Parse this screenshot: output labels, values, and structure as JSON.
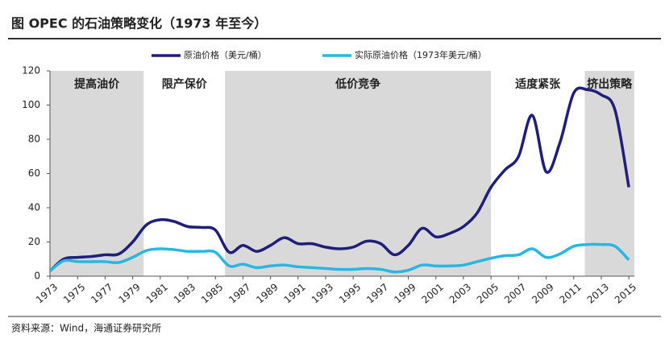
{
  "chart_data": {
    "type": "line",
    "title": "图 OPEC 的石油策略变化（1973 年至今）",
    "source": "资料来源：Wind，海通证券研究所",
    "x": [
      1973,
      1974,
      1975,
      1976,
      1977,
      1978,
      1979,
      1980,
      1981,
      1982,
      1983,
      1984,
      1985,
      1986,
      1987,
      1988,
      1989,
      1990,
      1991,
      1992,
      1993,
      1994,
      1995,
      1996,
      1997,
      1998,
      1999,
      2000,
      2001,
      2002,
      2003,
      2004,
      2005,
      2006,
      2007,
      2008,
      2009,
      2010,
      2011,
      2012,
      2013,
      2014,
      2015
    ],
    "series": [
      {
        "name": "原油价格（美元/桶）",
        "color": "#1f1f7a",
        "values": [
          3,
          10,
          11,
          11.5,
          12.5,
          13,
          20,
          30,
          33,
          32,
          29,
          28.5,
          27,
          14,
          18,
          14.5,
          18,
          22.5,
          19,
          19,
          17,
          16,
          17,
          20.5,
          19,
          12.5,
          18,
          28,
          23,
          25,
          29,
          37,
          52,
          62,
          70,
          94,
          61,
          78,
          107,
          109,
          106,
          97,
          52
        ]
      },
      {
        "name": "实际原油价格（1973年美元/桶）",
        "color": "#29b6e0",
        "values": [
          3,
          9,
          8.5,
          8.5,
          8.5,
          8,
          11,
          15,
          16,
          15.5,
          14.5,
          14.5,
          14,
          6,
          7,
          5,
          6,
          6.5,
          5.5,
          5,
          4.5,
          4,
          4,
          4.5,
          4,
          2.5,
          3.5,
          6.5,
          6,
          6,
          6.5,
          8.5,
          10.5,
          12,
          12.5,
          16,
          11,
          13,
          17.5,
          18.5,
          18.5,
          17.5,
          9.5
        ]
      }
    ],
    "phases": [
      {
        "label": "提高油价",
        "start": 1973,
        "end": 1979.8,
        "shaded": true
      },
      {
        "label": "限产保价",
        "start": 1979.8,
        "end": 1985.7,
        "shaded": false
      },
      {
        "label": "低价竞争",
        "start": 1985.7,
        "end": 2005,
        "shaded": true
      },
      {
        "label": "适度紧张",
        "start": 2005,
        "end": 2011.8,
        "shaded": false
      },
      {
        "label": "挤出策略",
        "start": 2011.8,
        "end": 2015.4,
        "shaded": true
      }
    ],
    "shade_color": "#d9d9d9",
    "xlim": [
      1973,
      2015.4
    ],
    "xticks": [
      1973,
      1975,
      1977,
      1979,
      1981,
      1983,
      1985,
      1987,
      1989,
      1991,
      1993,
      1995,
      1997,
      1999,
      2001,
      2003,
      2005,
      2007,
      2009,
      2011,
      2013,
      2015
    ],
    "ylim": [
      0,
      120
    ],
    "yticks": [
      0,
      20,
      40,
      60,
      80,
      100,
      120
    ]
  }
}
